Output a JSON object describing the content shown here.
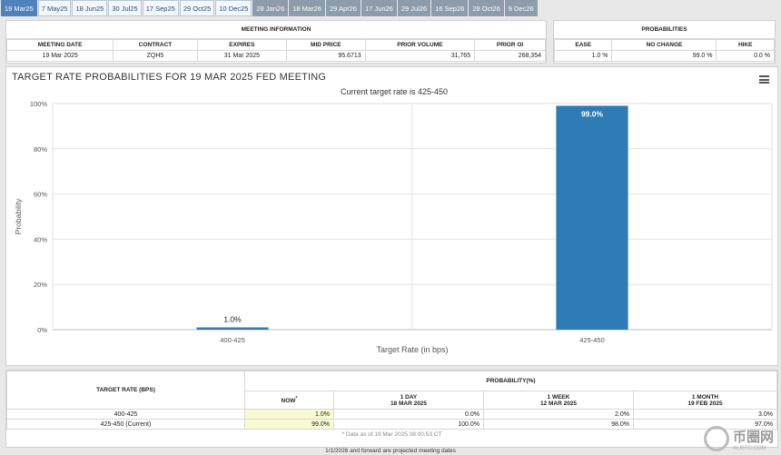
{
  "tabs": [
    {
      "label": "19 Mar25",
      "state": "active"
    },
    {
      "label": "7 May25",
      "state": "normal"
    },
    {
      "label": "18 Jun25",
      "state": "normal"
    },
    {
      "label": "30 Jul25",
      "state": "normal"
    },
    {
      "label": "17 Sep25",
      "state": "normal"
    },
    {
      "label": "29 Oct25",
      "state": "normal"
    },
    {
      "label": "10 Dec25",
      "state": "normal"
    },
    {
      "label": "28 Jan26",
      "state": "projected"
    },
    {
      "label": "18 Mar26",
      "state": "projected"
    },
    {
      "label": "29 Apr26",
      "state": "projected"
    },
    {
      "label": "17 Jun26",
      "state": "projected"
    },
    {
      "label": "29 Jul26",
      "state": "projected"
    },
    {
      "label": "16 Sep26",
      "state": "projected"
    },
    {
      "label": "28 Oct26",
      "state": "projected"
    },
    {
      "label": "9 Dec26",
      "state": "projected"
    }
  ],
  "meeting_info": {
    "header": "MEETING INFORMATION",
    "columns": [
      "MEETING DATE",
      "CONTRACT",
      "EXPIRES",
      "MID PRICE",
      "PRIOR VOLUME",
      "PRIOR OI"
    ],
    "values": [
      "19 Mar 2025",
      "ZQH5",
      "31 Mar 2025",
      "95.6713",
      "31,765",
      "268,354"
    ]
  },
  "probabilities": {
    "header": "PROBABILITIES",
    "columns": [
      "EASE",
      "NO CHANGE",
      "HIKE"
    ],
    "values": [
      "1.0 %",
      "99.0 %",
      "0.0 %"
    ]
  },
  "chart_title": "TARGET RATE PROBABILITIES FOR 19 MAR 2025 FED MEETING",
  "chart_data": {
    "type": "bar",
    "title": "TARGET RATE PROBABILITIES FOR 19 MAR 2025 FED MEETING",
    "subtitle": "Current target rate is 425-450",
    "categories": [
      "400-425",
      "425-450"
    ],
    "values": [
      1.0,
      99.0
    ],
    "data_labels": [
      "1.0%",
      "99.0%"
    ],
    "xlabel": "Target Rate (in bps)",
    "ylabel": "Probability",
    "ylim": [
      0,
      100
    ],
    "yticks": [
      0,
      20,
      40,
      60,
      80,
      100
    ],
    "ytick_labels": [
      "0%",
      "20%",
      "40%",
      "60%",
      "80%",
      "100%"
    ],
    "grid": true,
    "bar_color": "#2e7bb5"
  },
  "bottom_table": {
    "target_rate_header": "TARGET RATE (BPS)",
    "prob_header": "PROBABILITY(%)",
    "now_label": "NOW",
    "now_mark": "*",
    "periods": [
      {
        "label": "1 DAY",
        "date": "18 MAR 2025"
      },
      {
        "label": "1 WEEK",
        "date": "12 MAR 2025"
      },
      {
        "label": "1 MONTH",
        "date": "19 FEB 2025"
      }
    ],
    "rows": [
      {
        "rate": "400-425",
        "now": "1.0%",
        "day": "0.0%",
        "week": "2.0%",
        "month": "3.0%"
      },
      {
        "rate": "425-450 (Current)",
        "now": "99.0%",
        "day": "100.0%",
        "week": "98.0%",
        "month": "97.0%"
      }
    ],
    "note": "* Data as of 19 Mar 2025 08:00:53 CT"
  },
  "footer": "1/1/2026 and forward are projected meeting dates",
  "watermark": {
    "text": "币圈网",
    "sub": "ALIBTC.COM"
  }
}
